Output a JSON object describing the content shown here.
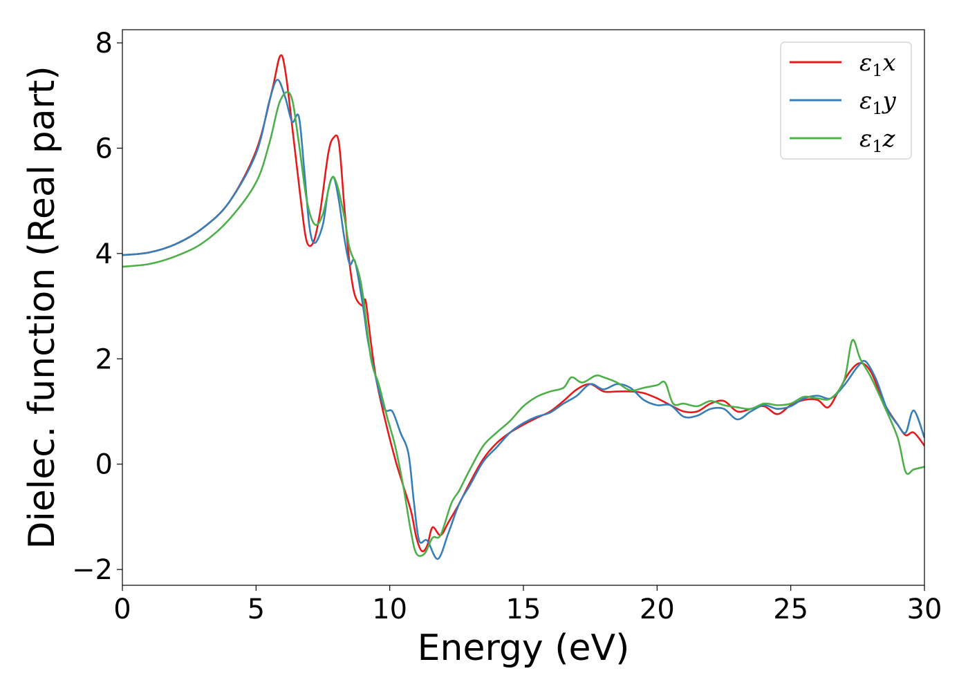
{
  "chart_data": {
    "type": "line",
    "xlabel": "Energy (eV)",
    "ylabel": "Dielec. function (Real part)",
    "xlim": [
      0,
      30
    ],
    "ylim": [
      -2.3,
      8.25
    ],
    "x_ticks": [
      0,
      5,
      10,
      15,
      20,
      25,
      30
    ],
    "y_ticks": [
      -2,
      0,
      2,
      4,
      6,
      8
    ],
    "x_tick_labels": [
      "0",
      "5",
      "10",
      "15",
      "20",
      "25",
      "30"
    ],
    "y_tick_labels": [
      "−2",
      "0",
      "2",
      "4",
      "6",
      "8"
    ],
    "grid": false,
    "legend_position": "top-right",
    "series": [
      {
        "name": "ε₁x",
        "legend_main": "ε",
        "legend_sub": "1",
        "legend_suffix": "x",
        "color": "#e41a1c",
        "points": [
          [
            0,
            3.97
          ],
          [
            1,
            4.02
          ],
          [
            2,
            4.18
          ],
          [
            3,
            4.48
          ],
          [
            4,
            4.98
          ],
          [
            5,
            5.95
          ],
          [
            5.6,
            7.1
          ],
          [
            5.9,
            7.75
          ],
          [
            6.1,
            7.45
          ],
          [
            6.4,
            6.2
          ],
          [
            6.7,
            4.9
          ],
          [
            6.9,
            4.22
          ],
          [
            7.15,
            4.22
          ],
          [
            7.4,
            4.8
          ],
          [
            7.7,
            5.9
          ],
          [
            7.9,
            6.2
          ],
          [
            8.1,
            6.1
          ],
          [
            8.3,
            4.9
          ],
          [
            8.5,
            3.8
          ],
          [
            8.7,
            3.2
          ],
          [
            9.0,
            3.0
          ],
          [
            9.1,
            3.1
          ],
          [
            9.3,
            2.3
          ],
          [
            9.5,
            1.6
          ],
          [
            9.8,
            0.9
          ],
          [
            10.2,
            0.1
          ],
          [
            10.5,
            -0.4
          ],
          [
            10.8,
            -0.9
          ],
          [
            11.0,
            -1.4
          ],
          [
            11.2,
            -1.65
          ],
          [
            11.4,
            -1.55
          ],
          [
            11.6,
            -1.2
          ],
          [
            11.9,
            -1.35
          ],
          [
            12.2,
            -1.1
          ],
          [
            12.6,
            -0.75
          ],
          [
            13.0,
            -0.35
          ],
          [
            13.5,
            0.1
          ],
          [
            14.0,
            0.4
          ],
          [
            14.5,
            0.6
          ],
          [
            15.0,
            0.75
          ],
          [
            15.5,
            0.88
          ],
          [
            16.0,
            1.0
          ],
          [
            16.5,
            1.2
          ],
          [
            17.0,
            1.42
          ],
          [
            17.5,
            1.52
          ],
          [
            18.0,
            1.38
          ],
          [
            18.5,
            1.38
          ],
          [
            19.0,
            1.38
          ],
          [
            19.5,
            1.35
          ],
          [
            20.0,
            1.25
          ],
          [
            20.5,
            1.12
          ],
          [
            21.0,
            1.0
          ],
          [
            21.5,
            1.0
          ],
          [
            22.0,
            1.15
          ],
          [
            22.5,
            1.2
          ],
          [
            23.0,
            1.0
          ],
          [
            23.5,
            1.05
          ],
          [
            24.0,
            1.1
          ],
          [
            24.5,
            0.95
          ],
          [
            25.0,
            1.12
          ],
          [
            25.5,
            1.22
          ],
          [
            26.0,
            1.22
          ],
          [
            26.4,
            1.08
          ],
          [
            26.8,
            1.4
          ],
          [
            27.2,
            1.75
          ],
          [
            27.6,
            1.92
          ],
          [
            28.0,
            1.75
          ],
          [
            28.5,
            1.15
          ],
          [
            29.0,
            0.75
          ],
          [
            29.3,
            0.55
          ],
          [
            29.6,
            0.6
          ],
          [
            30.0,
            0.35
          ]
        ]
      },
      {
        "name": "ε₁y",
        "legend_main": "ε",
        "legend_sub": "1",
        "legend_suffix": "y",
        "color": "#377eb8",
        "points": [
          [
            0,
            3.97
          ],
          [
            1,
            4.02
          ],
          [
            2,
            4.18
          ],
          [
            3,
            4.48
          ],
          [
            4,
            4.98
          ],
          [
            5,
            5.9
          ],
          [
            5.5,
            6.9
          ],
          [
            5.8,
            7.3
          ],
          [
            6.1,
            6.95
          ],
          [
            6.35,
            6.5
          ],
          [
            6.6,
            6.6
          ],
          [
            6.8,
            5.6
          ],
          [
            7.0,
            4.5
          ],
          [
            7.2,
            4.2
          ],
          [
            7.5,
            4.55
          ],
          [
            7.7,
            5.2
          ],
          [
            7.9,
            5.45
          ],
          [
            8.1,
            5.0
          ],
          [
            8.3,
            4.3
          ],
          [
            8.5,
            3.8
          ],
          [
            8.7,
            3.85
          ],
          [
            9.0,
            3.0
          ],
          [
            9.2,
            2.3
          ],
          [
            9.5,
            1.6
          ],
          [
            9.8,
            1.05
          ],
          [
            10.1,
            1.0
          ],
          [
            10.4,
            0.6
          ],
          [
            10.7,
            0.2
          ],
          [
            10.9,
            -0.7
          ],
          [
            11.1,
            -1.45
          ],
          [
            11.4,
            -1.45
          ],
          [
            11.8,
            -1.8
          ],
          [
            12.2,
            -1.3
          ],
          [
            12.6,
            -0.75
          ],
          [
            13.0,
            -0.4
          ],
          [
            13.5,
            0.05
          ],
          [
            14.0,
            0.32
          ],
          [
            14.5,
            0.6
          ],
          [
            15.0,
            0.78
          ],
          [
            15.5,
            0.9
          ],
          [
            16.0,
            0.98
          ],
          [
            16.5,
            1.15
          ],
          [
            17.0,
            1.3
          ],
          [
            17.5,
            1.52
          ],
          [
            18.0,
            1.42
          ],
          [
            18.5,
            1.52
          ],
          [
            19.0,
            1.45
          ],
          [
            19.5,
            1.22
          ],
          [
            20.0,
            1.12
          ],
          [
            20.5,
            1.12
          ],
          [
            21.0,
            0.9
          ],
          [
            21.5,
            0.92
          ],
          [
            22.0,
            1.05
          ],
          [
            22.5,
            1.05
          ],
          [
            23.0,
            0.85
          ],
          [
            23.5,
            1.0
          ],
          [
            24.0,
            1.12
          ],
          [
            24.5,
            1.05
          ],
          [
            25.0,
            1.1
          ],
          [
            25.5,
            1.25
          ],
          [
            26.0,
            1.3
          ],
          [
            26.5,
            1.25
          ],
          [
            27.0,
            1.5
          ],
          [
            27.5,
            1.85
          ],
          [
            27.8,
            1.95
          ],
          [
            28.2,
            1.6
          ],
          [
            28.6,
            1.05
          ],
          [
            29.0,
            0.75
          ],
          [
            29.3,
            0.6
          ],
          [
            29.6,
            1.02
          ],
          [
            30.0,
            0.5
          ]
        ]
      },
      {
        "name": "ε₁z",
        "legend_main": "ε",
        "legend_sub": "1",
        "legend_suffix": "z",
        "color": "#4daf4a",
        "points": [
          [
            0,
            3.75
          ],
          [
            1,
            3.8
          ],
          [
            2,
            3.95
          ],
          [
            3,
            4.2
          ],
          [
            4,
            4.65
          ],
          [
            5,
            5.35
          ],
          [
            5.5,
            6.1
          ],
          [
            5.9,
            6.9
          ],
          [
            6.3,
            7.0
          ],
          [
            6.6,
            6.1
          ],
          [
            6.9,
            5.0
          ],
          [
            7.2,
            4.55
          ],
          [
            7.5,
            4.75
          ],
          [
            7.8,
            5.4
          ],
          [
            8.0,
            5.35
          ],
          [
            8.3,
            4.7
          ],
          [
            8.5,
            4.1
          ],
          [
            8.8,
            3.7
          ],
          [
            9.0,
            3.2
          ],
          [
            9.3,
            2.0
          ],
          [
            9.6,
            1.5
          ],
          [
            9.9,
            0.9
          ],
          [
            10.2,
            0.35
          ],
          [
            10.5,
            -0.4
          ],
          [
            10.8,
            -1.3
          ],
          [
            11.0,
            -1.7
          ],
          [
            11.3,
            -1.7
          ],
          [
            11.6,
            -1.4
          ],
          [
            11.9,
            -1.35
          ],
          [
            12.3,
            -0.75
          ],
          [
            12.6,
            -0.5
          ],
          [
            13.0,
            -0.1
          ],
          [
            13.5,
            0.35
          ],
          [
            14.0,
            0.6
          ],
          [
            14.5,
            0.82
          ],
          [
            15.0,
            1.1
          ],
          [
            15.5,
            1.28
          ],
          [
            16.0,
            1.38
          ],
          [
            16.5,
            1.45
          ],
          [
            16.8,
            1.65
          ],
          [
            17.2,
            1.55
          ],
          [
            17.7,
            1.68
          ],
          [
            18.0,
            1.65
          ],
          [
            18.5,
            1.55
          ],
          [
            19.0,
            1.4
          ],
          [
            19.5,
            1.45
          ],
          [
            20.0,
            1.5
          ],
          [
            20.3,
            1.55
          ],
          [
            20.6,
            1.15
          ],
          [
            21.0,
            1.15
          ],
          [
            21.5,
            1.1
          ],
          [
            22.0,
            1.2
          ],
          [
            22.5,
            1.12
          ],
          [
            23.0,
            1.08
          ],
          [
            23.5,
            1.05
          ],
          [
            24.0,
            1.15
          ],
          [
            24.5,
            1.12
          ],
          [
            25.0,
            1.15
          ],
          [
            25.5,
            1.28
          ],
          [
            26.0,
            1.25
          ],
          [
            26.5,
            1.25
          ],
          [
            27.0,
            1.6
          ],
          [
            27.3,
            2.35
          ],
          [
            27.6,
            2.0
          ],
          [
            28.0,
            1.65
          ],
          [
            28.5,
            1.1
          ],
          [
            29.0,
            0.5
          ],
          [
            29.3,
            -0.15
          ],
          [
            29.6,
            -0.1
          ],
          [
            30.0,
            -0.05
          ]
        ]
      }
    ]
  }
}
